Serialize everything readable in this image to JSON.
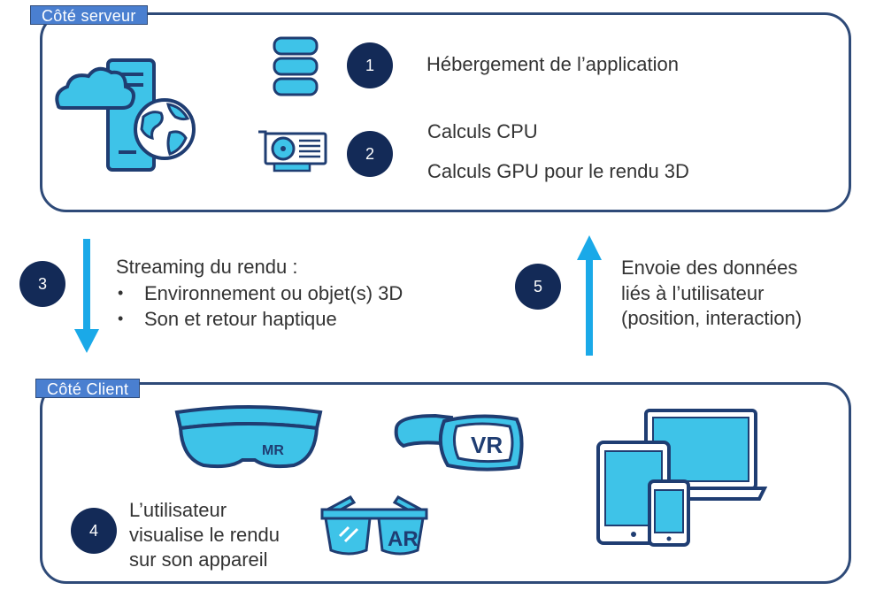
{
  "colors": {
    "panel_border": "#2e4a78",
    "tab_fill": "#4a7fd0",
    "badge_fill": "#132a57",
    "arrow": "#1aa9e8",
    "icon_fill": "#3ec3e8",
    "icon_stroke": "#1f3d72"
  },
  "server": {
    "title": "Côté serveur",
    "icons": [
      "cloud-server-globe-icon",
      "database-icon",
      "gpu-card-icon"
    ],
    "step1": {
      "number": "1",
      "text": "Hébergement de l’application"
    },
    "step2": {
      "number": "2",
      "line1": "Calculs CPU",
      "line2": "Calculs GPU pour le rendu 3D"
    }
  },
  "stream": {
    "number": "3",
    "heading": "Streaming du rendu :",
    "bullets": [
      "Environnement ou objet(s) 3D",
      "Son et retour haptique"
    ]
  },
  "send": {
    "number": "5",
    "lines": [
      "Envoie des données",
      "liés à l’utilisateur",
      "(position, interaction)"
    ]
  },
  "client": {
    "title": "Côté Client",
    "headsets": {
      "mr": "MR",
      "vr": "VR",
      "ar": "AR"
    },
    "icons": [
      "mr-headset-icon",
      "vr-headset-icon",
      "ar-glasses-icon",
      "devices-icon"
    ],
    "step4": {
      "number": "4",
      "lines": [
        "L’utilisateur",
        "visualise le rendu",
        "sur son appareil"
      ]
    }
  }
}
